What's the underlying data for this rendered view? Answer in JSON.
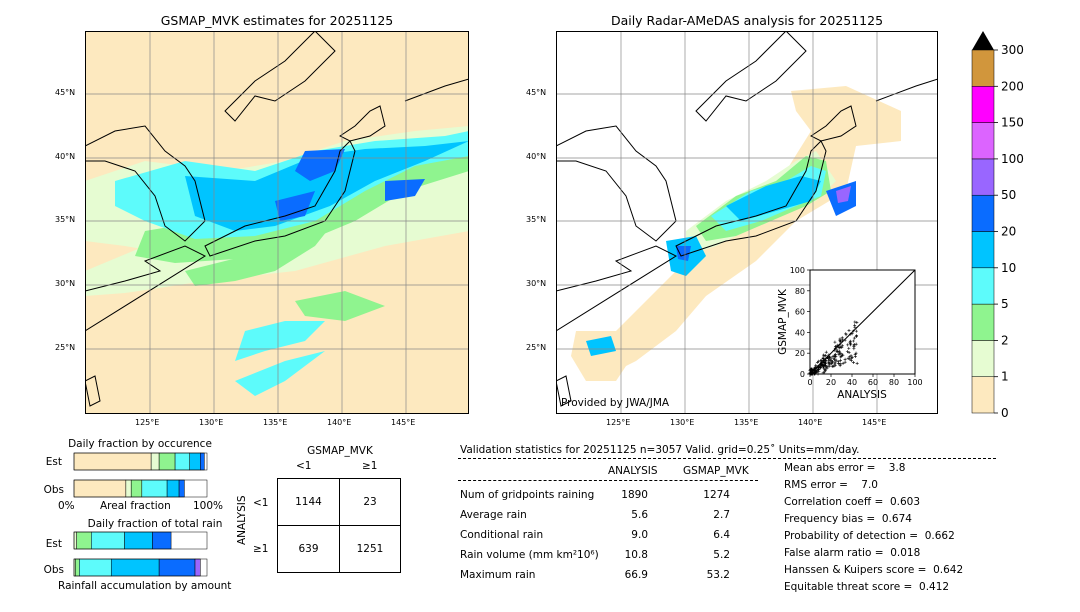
{
  "left_map": {
    "title": "GSMAP_MVK estimates for 20251125",
    "lat_labels": [
      "45°N",
      "40°N",
      "35°N",
      "30°N",
      "25°N"
    ],
    "lon_labels": [
      "125°E",
      "130°E",
      "135°E",
      "140°E",
      "145°E"
    ]
  },
  "right_map": {
    "title": "Daily Radar-AMeDAS analysis for 20251125",
    "lat_labels": [
      "45°N",
      "40°N",
      "35°N",
      "30°N",
      "25°N"
    ],
    "lon_labels": [
      "125°E",
      "130°E",
      "135°E",
      "140°E",
      "145°E"
    ],
    "credit": "Provided by JWA/JMA"
  },
  "colorbar": {
    "ticks": [
      "0",
      "1",
      "2",
      "5",
      "10",
      "20",
      "50",
      "100",
      "150",
      "200",
      "300"
    ],
    "colors": [
      "#fde9bf",
      "#e6fcd2",
      "#8ff48f",
      "#5dfbfb",
      "#00c4ff",
      "#0a6cff",
      "#9966ff",
      "#dc64ff",
      "#ff00ff",
      "#d1963c"
    ],
    "extend_color": "#000000"
  },
  "chart_data": [
    {
      "type": "scatter",
      "title": "",
      "xlabel": "ANALYSIS",
      "ylabel": "GSMAP_MVK",
      "xlim": [
        0,
        100
      ],
      "ylim": [
        0,
        100
      ],
      "xticks": [
        "0",
        "20",
        "40",
        "60",
        "80",
        "100"
      ],
      "yticks": [
        "0",
        "20",
        "40",
        "60",
        "80",
        "100"
      ],
      "reference_line": "y = x"
    },
    {
      "type": "bar",
      "title": "Daily fraction by occurence",
      "orientation": "horizontal-stacked",
      "categories": [
        "Est",
        "Obs"
      ],
      "xlabel_left": "0%",
      "xlabel_center": "Areal fraction",
      "xlabel_right": "100%",
      "series": [
        {
          "color": "#fde9bf",
          "values": [
            0.58,
            0.39
          ]
        },
        {
          "color": "#e6fcd2",
          "values": [
            0.06,
            0.04
          ]
        },
        {
          "color": "#8ff48f",
          "values": [
            0.12,
            0.08
          ]
        },
        {
          "color": "#5dfbfb",
          "values": [
            0.11,
            0.19
          ]
        },
        {
          "color": "#00c4ff",
          "values": [
            0.08,
            0.09
          ]
        },
        {
          "color": "#0a6cff",
          "values": [
            0.03,
            0.04
          ]
        }
      ]
    },
    {
      "type": "bar",
      "title": "Daily fraction of total rain",
      "orientation": "horizontal-stacked",
      "categories": [
        "Est",
        "Obs"
      ],
      "xlabel_center": "Rainfall accumulation by amount",
      "series": [
        {
          "color": "#e6fcd2",
          "values": [
            0.02,
            0.01
          ]
        },
        {
          "color": "#8ff48f",
          "values": [
            0.11,
            0.03
          ]
        },
        {
          "color": "#5dfbfb",
          "values": [
            0.25,
            0.24
          ]
        },
        {
          "color": "#00c4ff",
          "values": [
            0.21,
            0.36
          ]
        },
        {
          "color": "#0a6cff",
          "values": [
            0.14,
            0.27
          ]
        },
        {
          "color": "#9966ff",
          "values": [
            0.0,
            0.04
          ]
        }
      ]
    },
    {
      "type": "table",
      "title": "GSMAP_MVK",
      "col_headers": [
        "<1",
        "≥1"
      ],
      "row_title": "ANALYSIS",
      "row_headers": [
        "<1",
        "≥1"
      ],
      "cells": [
        [
          "1144",
          "23"
        ],
        [
          "639",
          "1251"
        ]
      ]
    }
  ],
  "validation": {
    "header": "Validation statistics for 20251125  n=3057 Valid. grid=0.25˚ Units=mm/day.",
    "col_analysis": "ANALYSIS",
    "col_gsmap": "GSMAP_MVK",
    "rows": [
      {
        "label": "Num of gridpoints raining",
        "analysis": "1890",
        "gsmap": "1274"
      },
      {
        "label": "Average rain",
        "analysis": "5.6",
        "gsmap": "2.7"
      },
      {
        "label": "Conditional rain",
        "analysis": "9.0",
        "gsmap": "6.4"
      },
      {
        "label": "Rain volume (mm km²10⁶)",
        "analysis": "10.8",
        "gsmap": "5.2"
      },
      {
        "label": "Maximum rain",
        "analysis": "66.9",
        "gsmap": "53.2"
      }
    ],
    "scores": [
      "Mean abs error =    3.8",
      "RMS error =    7.0",
      "Correlation coeff =  0.603",
      "Frequency bias =  0.674",
      "Probability of detection =  0.662",
      "False alarm ratio =  0.018",
      "Hanssen & Kuipers score =  0.642",
      "Equitable threat score =  0.412"
    ]
  }
}
